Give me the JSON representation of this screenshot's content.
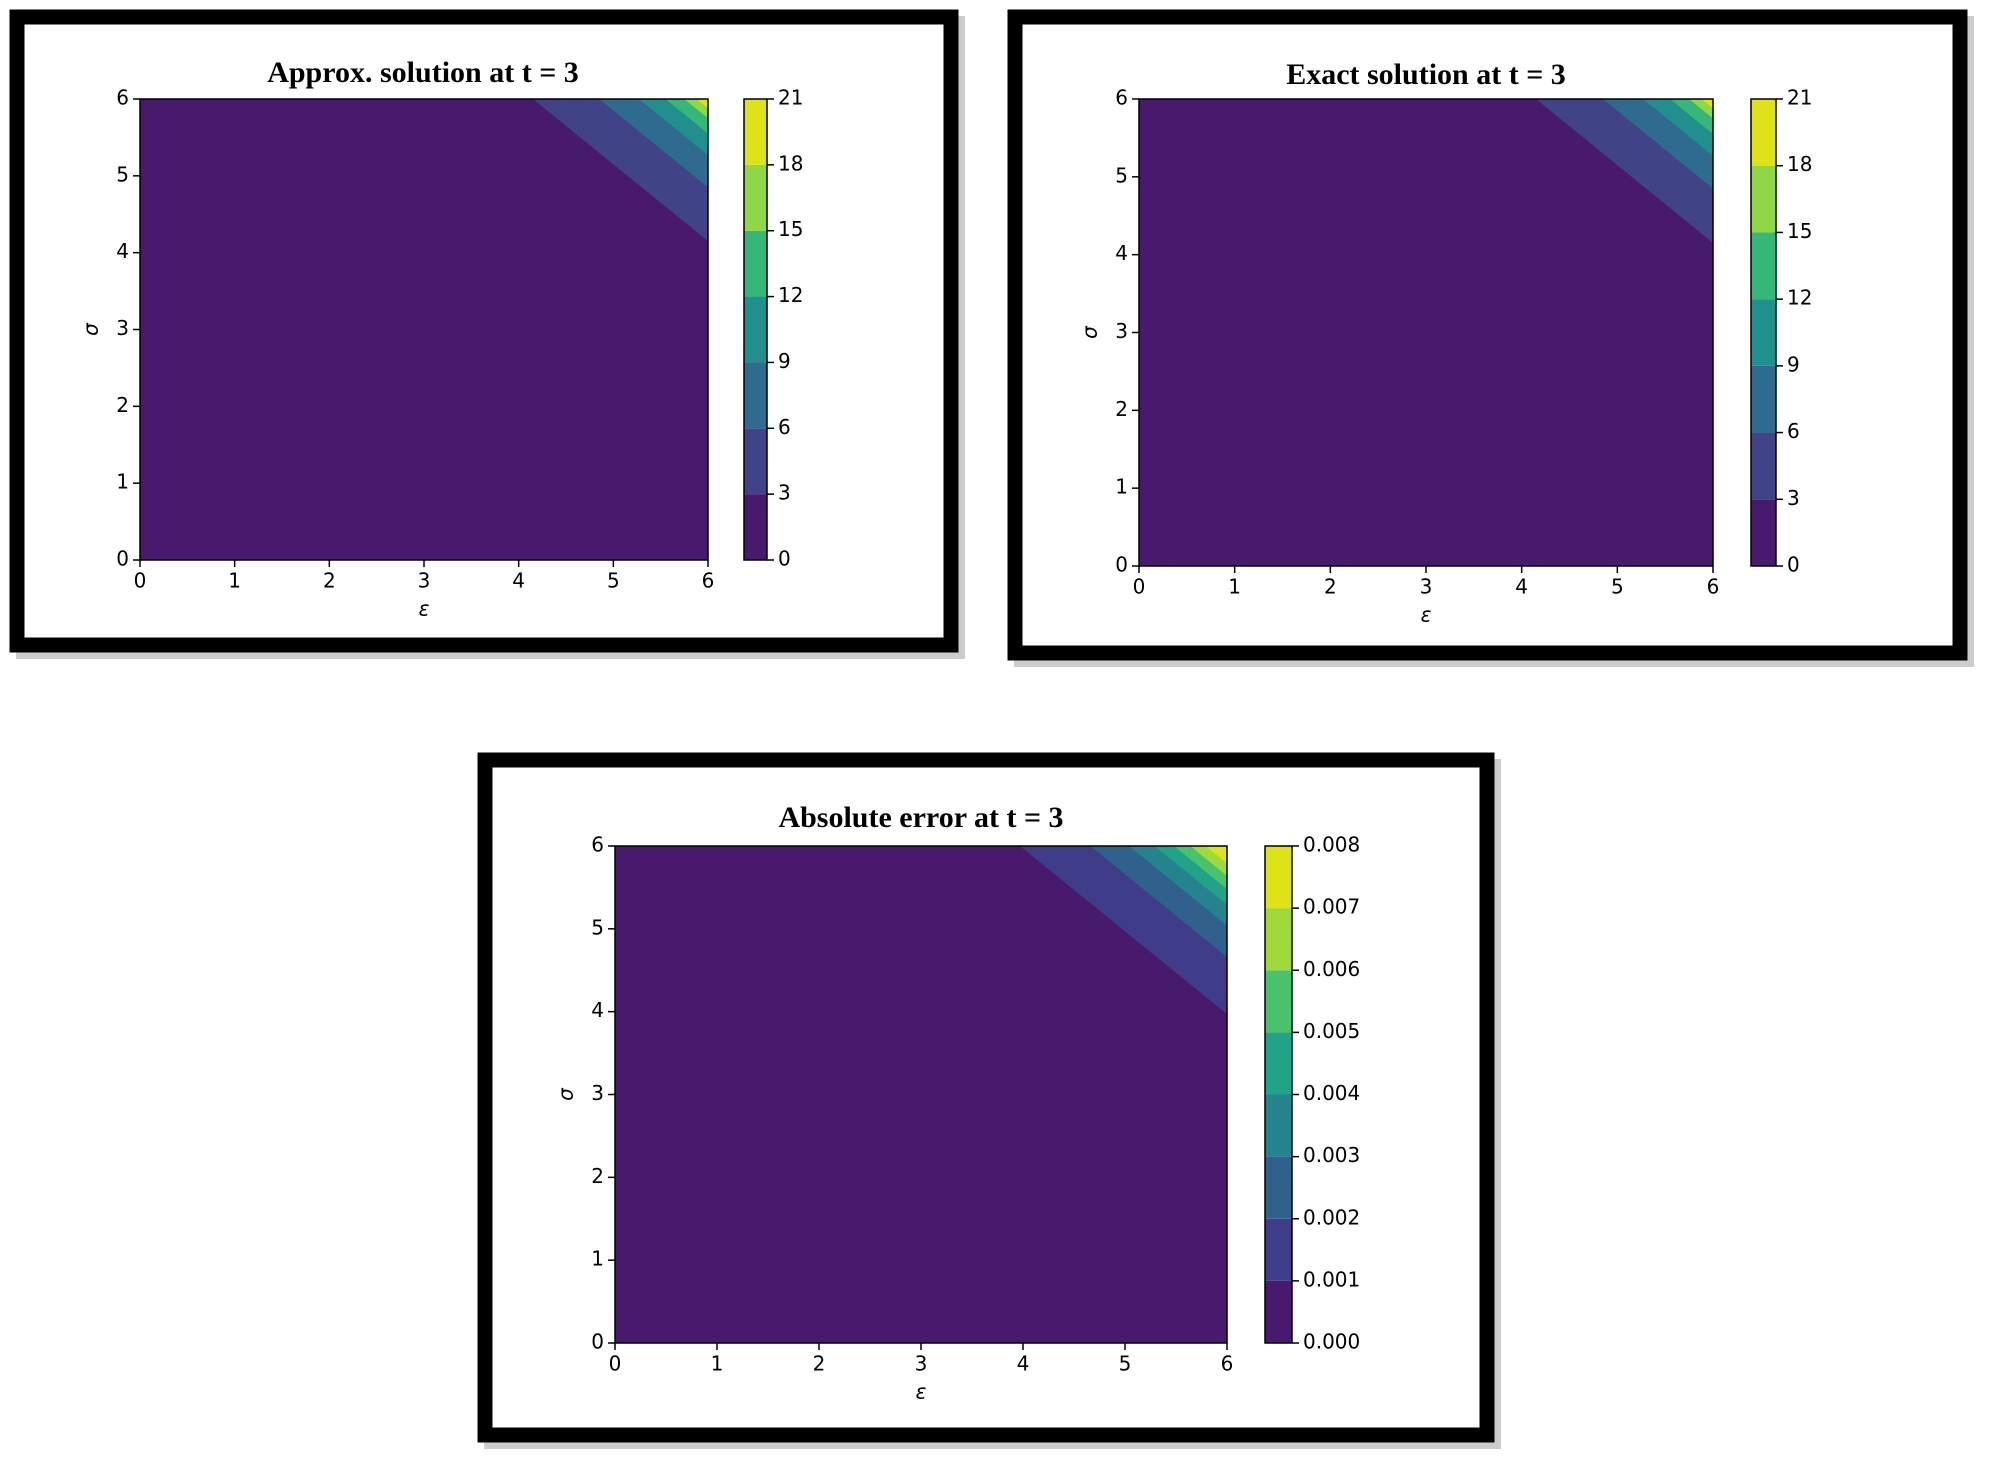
{
  "chart_data": [
    {
      "type": "contour",
      "title": "Approx. solution at t = 3",
      "xlabel": "ε",
      "ylabel": "σ",
      "xlim": [
        0,
        6
      ],
      "ylim": [
        0,
        6
      ],
      "xticks": [
        0,
        1,
        2,
        3,
        4,
        5,
        6
      ],
      "yticks": [
        0,
        1,
        2,
        3,
        4,
        5,
        6
      ],
      "zlim": [
        0,
        21
      ],
      "zticks": [
        0,
        3,
        6,
        9,
        12,
        15,
        18,
        21
      ],
      "colors": [
        "#471a6e",
        "#404387",
        "#2f6b8e",
        "#21908d",
        "#35b779",
        "#8fd744",
        "#dde318"
      ],
      "contours": [
        {
          "x": [
            4.15,
            6
          ],
          "y": [
            6,
            4.15
          ]
        },
        {
          "x": [
            4.85,
            6
          ],
          "y": [
            6,
            4.85
          ]
        },
        {
          "x": [
            5.27,
            6
          ],
          "y": [
            6,
            5.27
          ]
        },
        {
          "x": [
            5.55,
            6
          ],
          "y": [
            6,
            5.55
          ]
        },
        {
          "x": [
            5.75,
            6
          ],
          "y": [
            6,
            5.75
          ]
        },
        {
          "x": [
            5.88,
            6
          ],
          "y": [
            6,
            5.88
          ]
        }
      ]
    },
    {
      "type": "contour",
      "title": "Exact solution at t = 3",
      "xlabel": "ε",
      "ylabel": "σ",
      "xlim": [
        0,
        6
      ],
      "ylim": [
        0,
        6
      ],
      "xticks": [
        0,
        1,
        2,
        3,
        4,
        5,
        6
      ],
      "yticks": [
        0,
        1,
        2,
        3,
        4,
        5,
        6
      ],
      "zlim": [
        0,
        21
      ],
      "zticks": [
        0,
        3,
        6,
        9,
        12,
        15,
        18,
        21
      ],
      "colors": [
        "#471a6e",
        "#404387",
        "#2f6b8e",
        "#21908d",
        "#35b779",
        "#8fd744",
        "#dde318"
      ],
      "contours": [
        {
          "x": [
            4.15,
            6
          ],
          "y": [
            6,
            4.15
          ]
        },
        {
          "x": [
            4.85,
            6
          ],
          "y": [
            6,
            4.85
          ]
        },
        {
          "x": [
            5.27,
            6
          ],
          "y": [
            6,
            5.27
          ]
        },
        {
          "x": [
            5.55,
            6
          ],
          "y": [
            6,
            5.55
          ]
        },
        {
          "x": [
            5.75,
            6
          ],
          "y": [
            6,
            5.75
          ]
        },
        {
          "x": [
            5.88,
            6
          ],
          "y": [
            6,
            5.88
          ]
        }
      ]
    },
    {
      "type": "contour",
      "title": "Absolute error at t = 3",
      "xlabel": "ε",
      "ylabel": "σ",
      "xlim": [
        0,
        6
      ],
      "ylim": [
        0,
        6
      ],
      "xticks": [
        0,
        1,
        2,
        3,
        4,
        5,
        6
      ],
      "yticks": [
        0,
        1,
        2,
        3,
        4,
        5,
        6
      ],
      "zlim": [
        0,
        0.008
      ],
      "zticks": [
        {
          "value": 0,
          "label": "0.000"
        },
        0.001,
        0.002,
        0.003,
        0.004,
        0.005,
        0.006,
        0.007,
        0.008
      ],
      "colors": [
        "#471a6e",
        "#3f3d8a",
        "#30618d",
        "#25838e",
        "#20a386",
        "#4ac16d",
        "#9fda3a",
        "#dde318"
      ],
      "contours": [
        {
          "x": [
            3.97,
            6
          ],
          "y": [
            6,
            3.97
          ]
        },
        {
          "x": [
            4.66,
            6
          ],
          "y": [
            6,
            4.66
          ]
        },
        {
          "x": [
            5.04,
            6
          ],
          "y": [
            6,
            5.04
          ]
        },
        {
          "x": [
            5.29,
            6
          ],
          "y": [
            6,
            5.29
          ]
        },
        {
          "x": [
            5.48,
            6
          ],
          "y": [
            6,
            5.48
          ]
        },
        {
          "x": [
            5.64,
            6
          ],
          "y": [
            6,
            5.64
          ]
        },
        {
          "x": [
            5.79,
            6
          ],
          "y": [
            6,
            5.79
          ]
        }
      ]
    }
  ]
}
